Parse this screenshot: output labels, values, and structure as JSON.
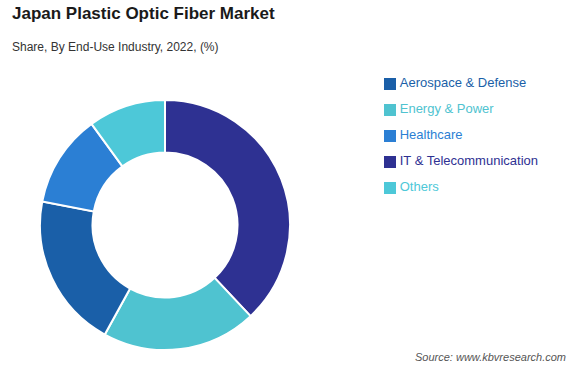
{
  "chart_data": {
    "type": "donut",
    "title": "Japan Plastic Optic Fiber Market",
    "subtitle": "Share, By End-Use Industry, 2022, (%)",
    "categories": [
      "IT & Telecommunication",
      "Energy & Power",
      "Aerospace & Defense",
      "Healthcare",
      "Others"
    ],
    "values": [
      38,
      20,
      20,
      12,
      10
    ],
    "colors": [
      "#2e3192",
      "#4fc3d0",
      "#1a5fa8",
      "#2b7fd4",
      "#4dc8d8"
    ],
    "legend": "upper right",
    "annotations": [
      "Source: www.kbvresearch.com"
    ]
  }
}
